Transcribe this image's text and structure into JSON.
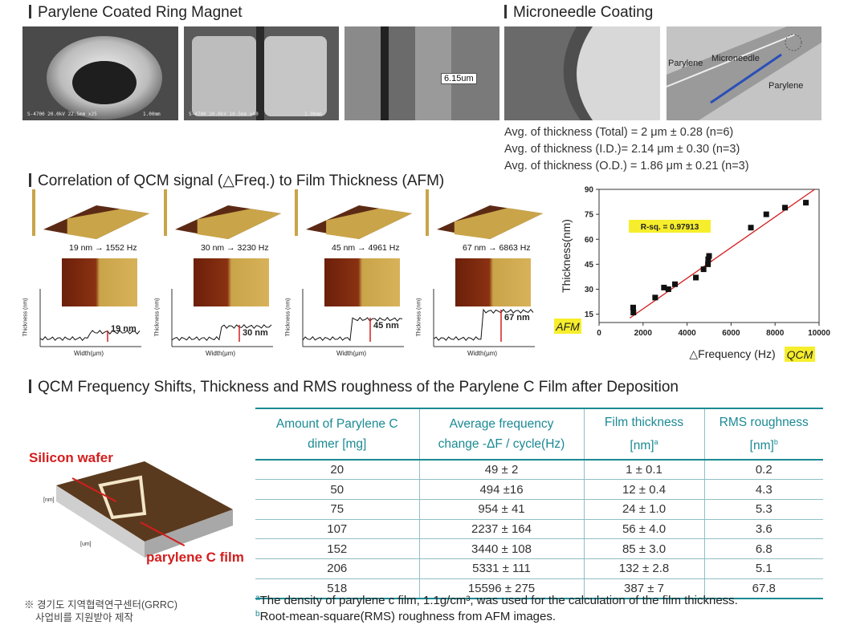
{
  "sections": {
    "ring_magnet": "Parylene Coated Ring Magnet",
    "microneedle": "Microneedle Coating",
    "correlation": "Correlation of QCM signal (△Freq.) to Film Thickness (AFM)",
    "table_title": "QCM Frequency Shifts, Thickness and RMS roughness of the Parylene C Film after Deposition"
  },
  "ring_magnet": {
    "captions": [
      "S-4700 20.0kV 22.5mm x25",
      "1.00mm",
      "S-4700 20.0kV 10.5mm x40",
      "1.00mm"
    ],
    "measure": "6.15um"
  },
  "microneedle": {
    "labels": {
      "parylene_left": "Parylene",
      "needle": "Microneedle",
      "parylene_right": "Parylene"
    },
    "thickness": [
      "Avg. of thickness (Total) = 2 μm ± 0.28 (n=6)",
      "Avg. of thickness (I.D.)= 2.14 μm ± 0.30 (n=3)",
      "Avg. of thickness (O.D.) = 1.86 μm ± 0.21 (n=3)"
    ]
  },
  "afm": {
    "captions": [
      "19 nm → 1552 Hz",
      "30 nm → 3230 Hz",
      "45 nm → 4961 Hz",
      "67 nm → 6863 Hz"
    ],
    "profile_labels": [
      "19 nm",
      "30 nm",
      "45 nm",
      "67 nm"
    ],
    "y_axis": "Thickness (nm)",
    "x_axis": "Width(μm)"
  },
  "colors": {
    "accent": "#1b8a94",
    "red": "#d41d1d",
    "highlight": "#f6ee2c",
    "afm_gold": "#c9a449"
  },
  "chart_data": [
    {
      "type": "scatter",
      "xlabel": "△Frequency (Hz)",
      "ylabel": "Thickness(nm)",
      "xlim": [
        0,
        10000
      ],
      "ylim": [
        10,
        90
      ],
      "xticks": [
        0,
        2000,
        4000,
        6000,
        8000,
        10000
      ],
      "yticks": [
        15,
        30,
        45,
        60,
        75,
        90
      ],
      "annotation": "R-sq. = 0.97913",
      "x_tag": "QCM",
      "y_tag": "AFM",
      "points": [
        {
          "x": 1550,
          "y": 19
        },
        {
          "x": 1560,
          "y": 16
        },
        {
          "x": 2550,
          "y": 25
        },
        {
          "x": 2950,
          "y": 31
        },
        {
          "x": 3150,
          "y": 30
        },
        {
          "x": 3450,
          "y": 33
        },
        {
          "x": 4400,
          "y": 37
        },
        {
          "x": 4750,
          "y": 42
        },
        {
          "x": 4950,
          "y": 45
        },
        {
          "x": 4960,
          "y": 48
        },
        {
          "x": 5000,
          "y": 50
        },
        {
          "x": 6900,
          "y": 67
        },
        {
          "x": 7600,
          "y": 75
        },
        {
          "x": 8450,
          "y": 79
        },
        {
          "x": 9400,
          "y": 82
        }
      ],
      "fit": {
        "x": [
          1400,
          9800
        ],
        "y": [
          12.7,
          90
        ]
      }
    },
    {
      "type": "table",
      "columns": [
        "Amount of Parylene C dimer [mg]",
        "Average frequency change -ΔF / cycle(Hz)",
        "Film thickness [nm]ᵃ",
        "RMS roughness [nm]ᵇ"
      ],
      "rows": [
        [
          "20",
          "49 ± 2",
          "1 ± 0.1",
          "0.2"
        ],
        [
          "50",
          "494 ±16",
          "12 ± 0.4",
          "4.3"
        ],
        [
          "75",
          "954 ± 41",
          "24 ± 1.0",
          "5.3"
        ],
        [
          "107",
          "2237 ± 164",
          "56 ± 4.0",
          "3.6"
        ],
        [
          "152",
          "3440 ± 108",
          "85 ± 3.0",
          "6.8"
        ],
        [
          "206",
          "5331 ± 111",
          "132 ± 2.8",
          "5.1"
        ],
        [
          "518",
          "15596 ± 275",
          "387 ± 7",
          "67.8"
        ]
      ]
    }
  ],
  "table_head": {
    "c1": "Amount of Parylene C dimer [mg]",
    "c2a": "Average frequency",
    "c2b": "change -ΔF / cycle(Hz)",
    "c3a": "Film thickness",
    "c3b": "[nm]",
    "c3sup": "a",
    "c4a": "RMS roughness",
    "c4b": "[nm]",
    "c4sup": "b"
  },
  "footnotes": {
    "a_mark": "a",
    "a_text": "The density of parylene c film, 1.1g/cm³, was used for the calculation of the film thickness.",
    "b_mark": "b",
    "b_text": "Root-mean-square(RMS) roughness from AFM images."
  },
  "wafer": {
    "silicon": "Silicon wafer",
    "parylene": "parylene C film",
    "axis_nm": "[nm]",
    "axis_um": "[um]"
  },
  "grrc": {
    "line1": "※ 경기도 지역협력연구센터(GRRC)",
    "line2": "사업비를 지원받아 제작"
  }
}
